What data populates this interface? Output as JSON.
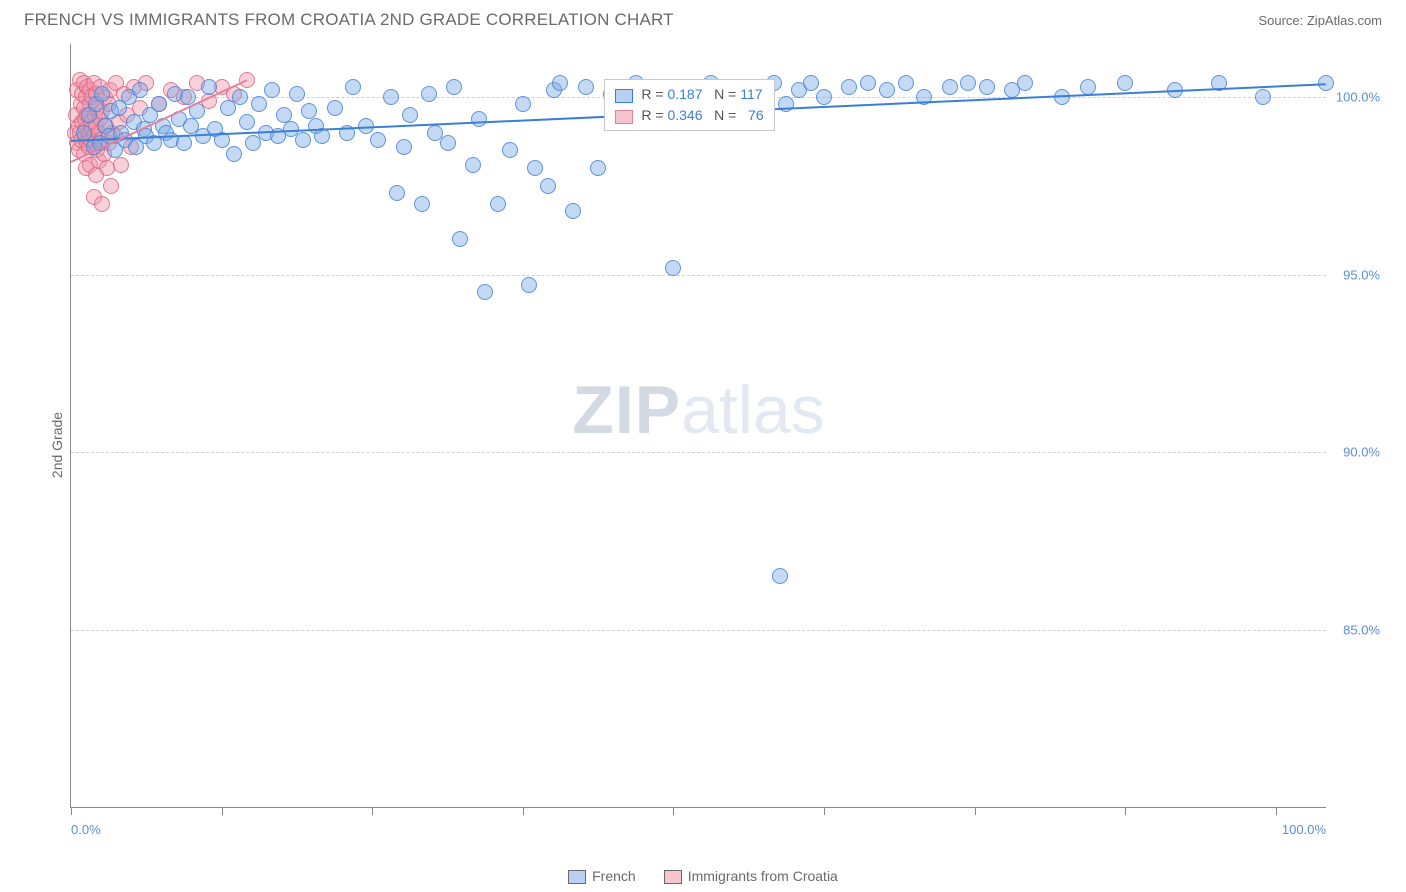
{
  "header": {
    "title": "FRENCH VS IMMIGRANTS FROM CROATIA 2ND GRADE CORRELATION CHART",
    "source": "Source: ZipAtlas.com"
  },
  "y_axis_label": "2nd Grade",
  "watermark": {
    "zip": "ZIP",
    "atlas": "atlas"
  },
  "chart": {
    "type": "scatter",
    "xlim": [
      0,
      100
    ],
    "ylim": [
      80,
      101.5
    ],
    "x_ticks": [
      0,
      12,
      24,
      36,
      48,
      60,
      72,
      84,
      96
    ],
    "x_tick_labels": {
      "0": "0.0%",
      "100": "100.0%"
    },
    "y_grid": [
      85,
      90,
      95,
      100
    ],
    "y_tick_labels": {
      "85": "85.0%",
      "90": "90.0%",
      "95": "95.0%",
      "100": "100.0%"
    },
    "background_color": "#ffffff",
    "grid_color": "#d0d0d0",
    "axis_color": "#888888",
    "tick_label_color": "#5b8fd6",
    "marker_radius": 8,
    "series": {
      "blue": {
        "label": "French",
        "color_fill": "rgba(125,170,230,0.45)",
        "color_border": "rgba(70,130,210,0.8)",
        "R": "0.187",
        "N": "117",
        "trend": {
          "x1": 0,
          "y1": 98.8,
          "x2": 100,
          "y2": 100.4
        },
        "points": [
          [
            1,
            99.0
          ],
          [
            1.4,
            99.5
          ],
          [
            1.8,
            98.6
          ],
          [
            2,
            99.8
          ],
          [
            2.3,
            98.7
          ],
          [
            2.5,
            100.1
          ],
          [
            2.7,
            99.2
          ],
          [
            3,
            98.9
          ],
          [
            3.2,
            99.6
          ],
          [
            3.5,
            98.5
          ],
          [
            3.8,
            99.7
          ],
          [
            4,
            99.0
          ],
          [
            4.3,
            98.8
          ],
          [
            4.6,
            100.0
          ],
          [
            5,
            99.3
          ],
          [
            5.2,
            98.6
          ],
          [
            5.5,
            100.2
          ],
          [
            5.8,
            99.1
          ],
          [
            6,
            98.9
          ],
          [
            6.3,
            99.5
          ],
          [
            6.6,
            98.7
          ],
          [
            7,
            99.8
          ],
          [
            7.3,
            99.2
          ],
          [
            7.6,
            99.0
          ],
          [
            8,
            98.8
          ],
          [
            8.3,
            100.1
          ],
          [
            8.6,
            99.4
          ],
          [
            9,
            98.7
          ],
          [
            9.3,
            100.0
          ],
          [
            9.6,
            99.2
          ],
          [
            10,
            99.6
          ],
          [
            10.5,
            98.9
          ],
          [
            11,
            100.3
          ],
          [
            11.5,
            99.1
          ],
          [
            12,
            98.8
          ],
          [
            12.5,
            99.7
          ],
          [
            13,
            98.4
          ],
          [
            13.5,
            100.0
          ],
          [
            14,
            99.3
          ],
          [
            14.5,
            98.7
          ],
          [
            15,
            99.8
          ],
          [
            15.5,
            99.0
          ],
          [
            16,
            100.2
          ],
          [
            16.5,
            98.9
          ],
          [
            17,
            99.5
          ],
          [
            17.5,
            99.1
          ],
          [
            18,
            100.1
          ],
          [
            18.5,
            98.8
          ],
          [
            19,
            99.6
          ],
          [
            19.5,
            99.2
          ],
          [
            20,
            98.9
          ],
          [
            21,
            99.7
          ],
          [
            22,
            99.0
          ],
          [
            22.5,
            100.3
          ],
          [
            23.5,
            99.2
          ],
          [
            24.5,
            98.8
          ],
          [
            25.5,
            100.0
          ],
          [
            26,
            97.3
          ],
          [
            26.5,
            98.6
          ],
          [
            27,
            99.5
          ],
          [
            28,
            97.0
          ],
          [
            28.5,
            100.1
          ],
          [
            29,
            99.0
          ],
          [
            30,
            98.7
          ],
          [
            30.5,
            100.3
          ],
          [
            31,
            96.0
          ],
          [
            32,
            98.1
          ],
          [
            32.5,
            99.4
          ],
          [
            33,
            94.5
          ],
          [
            34,
            97.0
          ],
          [
            35,
            98.5
          ],
          [
            36,
            99.8
          ],
          [
            36.5,
            94.7
          ],
          [
            37,
            98.0
          ],
          [
            38,
            97.5
          ],
          [
            38.5,
            100.2
          ],
          [
            39,
            100.4
          ],
          [
            40,
            96.8
          ],
          [
            41,
            100.3
          ],
          [
            42,
            98.0
          ],
          [
            43,
            100.1
          ],
          [
            44,
            99.9
          ],
          [
            45,
            100.4
          ],
          [
            46,
            100.0
          ],
          [
            47,
            100.3
          ],
          [
            48,
            95.2
          ],
          [
            49,
            100.2
          ],
          [
            50,
            100.0
          ],
          [
            50.5,
            100.3
          ],
          [
            51,
            100.4
          ],
          [
            52,
            100.1
          ],
          [
            53,
            100.3
          ],
          [
            54,
            99.9
          ],
          [
            55,
            100.3
          ],
          [
            56,
            100.4
          ],
          [
            56.5,
            86.5
          ],
          [
            57,
            99.8
          ],
          [
            58,
            100.2
          ],
          [
            59,
            100.4
          ],
          [
            60,
            100.0
          ],
          [
            62,
            100.3
          ],
          [
            63.5,
            100.4
          ],
          [
            65,
            100.2
          ],
          [
            66.5,
            100.4
          ],
          [
            68,
            100.0
          ],
          [
            70,
            100.3
          ],
          [
            71.5,
            100.4
          ],
          [
            73,
            100.3
          ],
          [
            75,
            100.2
          ],
          [
            76,
            100.4
          ],
          [
            79,
            100.0
          ],
          [
            81,
            100.3
          ],
          [
            84,
            100.4
          ],
          [
            88,
            100.2
          ],
          [
            91.5,
            100.4
          ],
          [
            95,
            100.0
          ],
          [
            100,
            100.4
          ]
        ]
      },
      "pink": {
        "label": "Immigants from Croatia",
        "label_display": "Immigrants from Croatia",
        "color_fill": "rgba(240,150,170,0.45)",
        "color_border": "rgba(220,100,130,0.8)",
        "R": "0.346",
        "N": "76",
        "trend": {
          "x1": 0,
          "y1": 98.2,
          "x2": 14,
          "y2": 100.5
        },
        "points": [
          [
            0.3,
            99.0
          ],
          [
            0.4,
            99.5
          ],
          [
            0.5,
            98.7
          ],
          [
            0.5,
            100.2
          ],
          [
            0.6,
            99.2
          ],
          [
            0.6,
            98.5
          ],
          [
            0.7,
            100.5
          ],
          [
            0.7,
            99.0
          ],
          [
            0.8,
            99.8
          ],
          [
            0.8,
            98.8
          ],
          [
            0.9,
            100.1
          ],
          [
            0.9,
            99.3
          ],
          [
            1.0,
            98.4
          ],
          [
            1.0,
            99.7
          ],
          [
            1.0,
            100.4
          ],
          [
            1.1,
            98.9
          ],
          [
            1.1,
            99.4
          ],
          [
            1.2,
            98.0
          ],
          [
            1.2,
            100.0
          ],
          [
            1.2,
            99.1
          ],
          [
            1.3,
            98.7
          ],
          [
            1.3,
            100.3
          ],
          [
            1.3,
            99.5
          ],
          [
            1.4,
            98.6
          ],
          [
            1.4,
            99.0
          ],
          [
            1.5,
            99.8
          ],
          [
            1.5,
            98.1
          ],
          [
            1.5,
            100.2
          ],
          [
            1.6,
            99.3
          ],
          [
            1.6,
            98.8
          ],
          [
            1.7,
            100.0
          ],
          [
            1.7,
            99.1
          ],
          [
            1.8,
            97.2
          ],
          [
            1.8,
            98.9
          ],
          [
            1.8,
            100.4
          ],
          [
            1.9,
            99.5
          ],
          [
            1.9,
            98.7
          ],
          [
            2.0,
            99.2
          ],
          [
            2.0,
            97.8
          ],
          [
            2.0,
            100.1
          ],
          [
            2.1,
            98.5
          ],
          [
            2.1,
            99.7
          ],
          [
            2.2,
            99.0
          ],
          [
            2.2,
            98.2
          ],
          [
            2.3,
            100.3
          ],
          [
            2.3,
            99.4
          ],
          [
            2.4,
            98.8
          ],
          [
            2.5,
            97.0
          ],
          [
            2.5,
            99.6
          ],
          [
            2.6,
            98.4
          ],
          [
            2.7,
            100.0
          ],
          [
            2.8,
            99.2
          ],
          [
            2.9,
            98.0
          ],
          [
            3.0,
            99.8
          ],
          [
            3.0,
            98.7
          ],
          [
            3.1,
            100.2
          ],
          [
            3.2,
            97.5
          ],
          [
            3.3,
            99.0
          ],
          [
            3.5,
            98.9
          ],
          [
            3.6,
            100.4
          ],
          [
            3.8,
            99.3
          ],
          [
            4.0,
            98.1
          ],
          [
            4.2,
            100.1
          ],
          [
            4.5,
            99.5
          ],
          [
            4.8,
            98.6
          ],
          [
            5.0,
            100.3
          ],
          [
            5.5,
            99.7
          ],
          [
            6.0,
            100.4
          ],
          [
            7.0,
            99.8
          ],
          [
            8.0,
            100.2
          ],
          [
            9.0,
            100.0
          ],
          [
            10.0,
            100.4
          ],
          [
            11.0,
            99.9
          ],
          [
            12.0,
            100.3
          ],
          [
            13.0,
            100.1
          ],
          [
            14.0,
            100.5
          ]
        ]
      }
    },
    "legend_stats_pos": {
      "left_pct": 42.5,
      "top_y": 100.5
    }
  },
  "legend": {
    "series1": "French",
    "series2": "Immigrants from Croatia",
    "R_label": "R =",
    "N_label": "N ="
  }
}
